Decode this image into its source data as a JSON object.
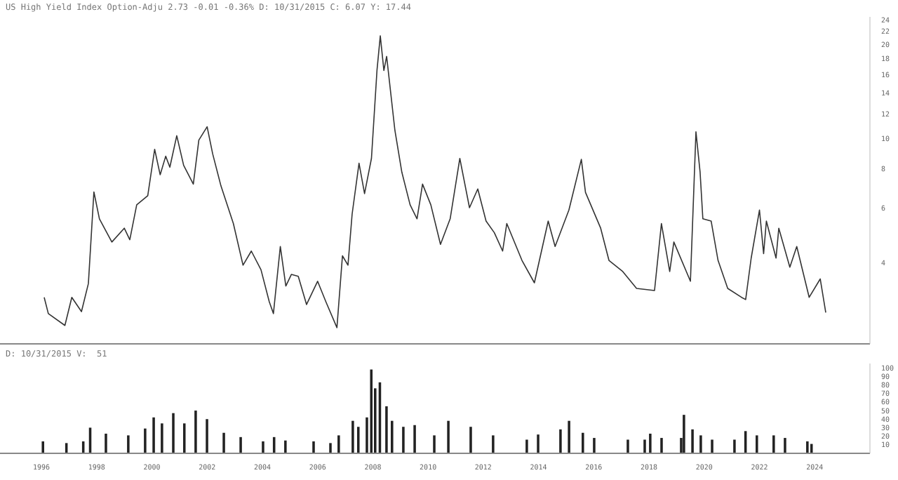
{
  "chart_data": [
    {
      "type": "line",
      "title": "US High Yield Index Option-Adju 2.73 -0.01 -0.36% D: 10/31/2015 C: 6.07 Y: 17.44",
      "color": "#333333",
      "log": true,
      "tick_labels": "y",
      "xlim": [
        1994.5,
        2026
      ],
      "ylim": [
        2.2,
        24.5
      ],
      "yticks": [
        4,
        6,
        8,
        10,
        12,
        14,
        16,
        18,
        20,
        22,
        24
      ],
      "x": [
        1996.1,
        1996.25,
        1996.85,
        1997.1,
        1997.45,
        1997.7,
        1997.9,
        1998.1,
        1998.55,
        1999.0,
        1999.2,
        1999.45,
        1999.85,
        2000.1,
        2000.3,
        2000.5,
        2000.65,
        2000.9,
        2001.15,
        2001.5,
        2001.7,
        2002.0,
        2002.2,
        2002.5,
        2002.95,
        2003.3,
        2003.6,
        2003.95,
        2004.25,
        2004.4,
        2004.65,
        2004.85,
        2005.05,
        2005.3,
        2005.6,
        2006.0,
        2006.3,
        2006.7,
        2006.9,
        2007.1,
        2007.25,
        2007.5,
        2007.7,
        2007.95,
        2008.15,
        2008.27,
        2008.4,
        2008.5,
        2008.8,
        2009.05,
        2009.35,
        2009.6,
        2009.8,
        2010.1,
        2010.45,
        2010.8,
        2011.15,
        2011.5,
        2011.8,
        2012.1,
        2012.4,
        2012.7,
        2012.85,
        2013.4,
        2013.85,
        2014.35,
        2014.6,
        2015.1,
        2015.55,
        2015.7,
        2016.25,
        2016.55,
        2017.05,
        2017.55,
        2018.2,
        2018.45,
        2018.75,
        2018.9,
        2019.5,
        2019.7,
        2019.85,
        2019.95,
        2020.25,
        2020.5,
        2020.85,
        2021.35,
        2021.5,
        2021.7,
        2022.0,
        2022.15,
        2022.25,
        2022.6,
        2022.7,
        2023.1,
        2023.35,
        2023.8,
        2024.2,
        2024.4
      ],
      "values": [
        3.1,
        2.75,
        2.52,
        3.1,
        2.79,
        3.43,
        6.74,
        5.53,
        4.66,
        5.16,
        4.74,
        6.13,
        6.56,
        9.23,
        7.65,
        8.77,
        8.09,
        10.2,
        8.2,
        7.14,
        9.88,
        10.9,
        8.93,
        7.05,
        5.34,
        3.93,
        4.36,
        3.8,
        3.0,
        2.75,
        4.51,
        3.37,
        3.67,
        3.62,
        2.94,
        3.49,
        3.0,
        2.48,
        4.21,
        3.93,
        5.72,
        8.33,
        6.66,
        8.63,
        16.5,
        21.3,
        16.5,
        18.3,
        10.6,
        7.8,
        6.13,
        5.53,
        7.14,
        6.13,
        4.58,
        5.53,
        8.63,
        6.0,
        6.89,
        5.44,
        4.99,
        4.36,
        5.34,
        4.07,
        3.45,
        5.44,
        4.51,
        5.9,
        8.57,
        6.72,
        5.16,
        4.07,
        3.75,
        3.31,
        3.26,
        5.34,
        3.75,
        4.66,
        3.49,
        10.5,
        7.8,
        5.53,
        5.44,
        4.07,
        3.31,
        3.1,
        3.05,
        4.14,
        5.9,
        4.28,
        5.44,
        4.14,
        5.16,
        3.87,
        4.51,
        3.1,
        3.55,
        2.77
      ]
    },
    {
      "type": "bar",
      "title": "D: 10/31/2015 V:  51",
      "color": "#222222",
      "xlim": [
        1994.5,
        2026
      ],
      "xticks": [
        1996,
        1998,
        2000,
        2002,
        2004,
        2006,
        2008,
        2010,
        2012,
        2014,
        2016,
        2018,
        2020,
        2022,
        2024
      ],
      "ylim": [
        0,
        105
      ],
      "yticks": [
        10,
        20,
        30,
        40,
        50,
        60,
        70,
        80,
        90,
        100
      ],
      "x": [
        1996.06,
        1996.91,
        1997.52,
        1997.77,
        1998.34,
        1999.15,
        1999.76,
        2000.07,
        2000.37,
        2000.78,
        2001.18,
        2001.59,
        2002.0,
        2002.61,
        2003.22,
        2004.03,
        2004.43,
        2004.84,
        2005.86,
        2006.47,
        2006.77,
        2007.28,
        2007.48,
        2007.79,
        2007.95,
        2008.09,
        2008.26,
        2008.5,
        2008.7,
        2009.11,
        2009.52,
        2010.23,
        2010.74,
        2011.55,
        2012.36,
        2013.58,
        2013.99,
        2014.8,
        2015.11,
        2015.61,
        2016.02,
        2017.24,
        2017.85,
        2018.05,
        2018.46,
        2019.17,
        2019.27,
        2019.58,
        2019.88,
        2020.29,
        2021.1,
        2021.5,
        2021.91,
        2022.52,
        2022.93,
        2023.74,
        2023.89
      ],
      "values": [
        14,
        12,
        14,
        30,
        23,
        21,
        29,
        42,
        35,
        47,
        35,
        50,
        40,
        24,
        19,
        14,
        19,
        15,
        14,
        12,
        21,
        38,
        31,
        42,
        98,
        76,
        83,
        55,
        38,
        31,
        33,
        21,
        38,
        31,
        21,
        16,
        22,
        28,
        38,
        24,
        18,
        16,
        16,
        23,
        18,
        18,
        45,
        28,
        21,
        16,
        16,
        26,
        21,
        21,
        18,
        14,
        11
      ]
    }
  ]
}
